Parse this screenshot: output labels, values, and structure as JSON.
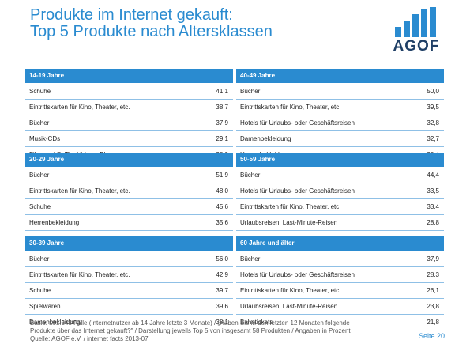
{
  "title": {
    "line1": "Produkte im Internet gekauft:",
    "line2": "Top 5 Produkte nach Altersklassen"
  },
  "logo": {
    "text": "AGOF",
    "color": "#2a8bd0"
  },
  "sections": [
    {
      "id": "s1419",
      "header": "14-19 Jahre",
      "rows": [
        {
          "label": "Schuhe",
          "value": "41,1"
        },
        {
          "label": "Eintrittskarten für Kino, Theater, etc.",
          "value": "38,7"
        },
        {
          "label": "Bücher",
          "value": "37,9"
        },
        {
          "label": "Musik-CDs",
          "value": "29,1"
        },
        {
          "label": "Filme auf DVDs, Videos, Blurays",
          "value": "28,9"
        }
      ]
    },
    {
      "id": "s2029",
      "header": "20-29 Jahre",
      "rows": [
        {
          "label": "Bücher",
          "value": "51,9"
        },
        {
          "label": "Eintrittskarten für Kino, Theater, etc.",
          "value": "48,0"
        },
        {
          "label": "Schuhe",
          "value": "45,6"
        },
        {
          "label": "Herrenbekleidung",
          "value": "35,6"
        },
        {
          "label": "Damenbekleidung",
          "value": "34,2"
        }
      ]
    },
    {
      "id": "s3039",
      "header": "30-39 Jahre",
      "rows": [
        {
          "label": "Bücher",
          "value": "56,0"
        },
        {
          "label": "Eintrittskarten für Kino, Theater, etc.",
          "value": "42,9"
        },
        {
          "label": "Schuhe",
          "value": "39,7"
        },
        {
          "label": "Spielwaren",
          "value": "39,6"
        },
        {
          "label": "Damenbekleidung",
          "value": "38,1"
        }
      ]
    },
    {
      "id": "s4049",
      "header": "40-49 Jahre",
      "rows": [
        {
          "label": "Bücher",
          "value": "50,0"
        },
        {
          "label": "Eintrittskarten für Kino, Theater, etc.",
          "value": "39,5"
        },
        {
          "label": "Hotels für Urlaubs- oder Geschäftsreisen",
          "value": "32,8"
        },
        {
          "label": "Damenbekleidung",
          "value": "32,7"
        },
        {
          "label": "Herrenbekleidung",
          "value": "30,4"
        }
      ]
    },
    {
      "id": "s5059",
      "header": "50-59 Jahre",
      "rows": [
        {
          "label": "Bücher",
          "value": "44,4"
        },
        {
          "label": "Hotels für Urlaubs- oder Geschäftsreisen",
          "value": "33,5"
        },
        {
          "label": "Eintrittskarten für Kino, Theater, etc.",
          "value": "33,4"
        },
        {
          "label": "Urlaubsreisen, Last-Minute-Reisen",
          "value": "28,8"
        },
        {
          "label": "Damenbekleidung",
          "value": "27,7"
        }
      ]
    },
    {
      "id": "s60",
      "header": "60 Jahre und älter",
      "rows": [
        {
          "label": "Bücher",
          "value": "37,9"
        },
        {
          "label": "Hotels für Urlaubs- oder Geschäftsreisen",
          "value": "28,3"
        },
        {
          "label": "Eintrittskarten für Kino, Theater, etc.",
          "value": "26,1"
        },
        {
          "label": "Urlaubsreisen, Last-Minute-Reisen",
          "value": "23,8"
        },
        {
          "label": "Bahntickets",
          "value": "21,8"
        }
      ]
    }
  ],
  "footnote": {
    "line1": "Basis: 101.343 Fälle (Internetnutzer ab 14 Jahre letzte 3 Monate) / „Haben Sie in den letzten 12 Monaten folgende",
    "line2": "Produkte über das Internet gekauft?\" / Darstellung jeweils Top 5 von insgesamt 58 Produkten / Angaben in Prozent",
    "line3": "Quelle: AGOF e.V. / internet facts 2013-07"
  },
  "page_label": "Seite 20"
}
